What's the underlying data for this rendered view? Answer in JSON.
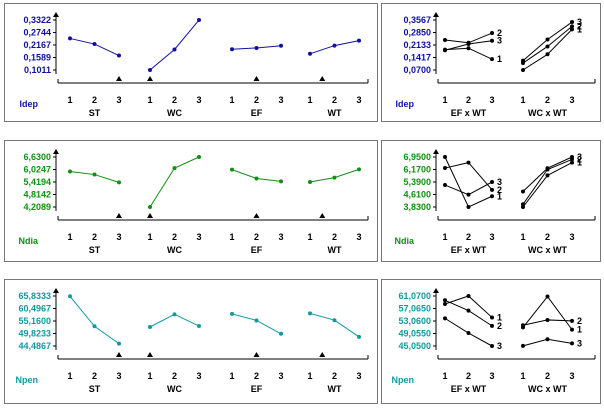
{
  "chart_data": [
    {
      "type": "line",
      "response": "Idep",
      "color": "#1010a0",
      "yticks": [
        "0,3322",
        "0,2744",
        "0,2167",
        "0,1589",
        "0,1011"
      ],
      "ylim": [
        0.1011,
        0.3322
      ],
      "main_effects": [
        {
          "factor": "ST",
          "x": [
            "1",
            "2",
            "3"
          ],
          "values": [
            0.247,
            0.221,
            0.168
          ],
          "marker_level": 3
        },
        {
          "factor": "WC",
          "x": [
            "1",
            "2",
            "3"
          ],
          "values": [
            0.101,
            0.196,
            0.332
          ],
          "marker_level": 1
        },
        {
          "factor": "EF",
          "x": [
            "1",
            "2",
            "3"
          ],
          "values": [
            0.197,
            0.203,
            0.213
          ],
          "marker_level": 2
        },
        {
          "factor": "WT",
          "x": [
            "1",
            "2",
            "3"
          ],
          "values": [
            0.176,
            0.214,
            0.237
          ],
          "marker_level": 1.5
        }
      ],
      "interactions_yticks": [
        "0,3567",
        "0,2850",
        "0,2133",
        "0,1417",
        "0,0700"
      ],
      "interactions_ylim": [
        0.07,
        0.3567
      ],
      "interactions": [
        {
          "name": "EF x WT",
          "x": [
            "1",
            "2",
            "3"
          ],
          "series": [
            {
              "name": "1",
              "values": [
                0.187,
                0.195,
                0.132
              ]
            },
            {
              "name": "2",
              "values": [
                0.242,
                0.226,
                0.282
              ]
            },
            {
              "name": "3",
              "values": [
                0.183,
                0.219,
                0.238
              ]
            }
          ]
        },
        {
          "name": "WC x WT",
          "x": [
            "1",
            "2",
            "3"
          ],
          "series": [
            {
              "name": "1",
              "values": [
                0.07,
                0.16,
                0.303
              ]
            },
            {
              "name": "2",
              "values": [
                0.11,
                0.205,
                0.32
              ]
            },
            {
              "name": "3",
              "values": [
                0.124,
                0.245,
                0.345
              ]
            }
          ]
        }
      ]
    },
    {
      "type": "line",
      "response": "Ndia",
      "color": "#109010",
      "yticks": [
        "6,6300",
        "6,0247",
        "5,4194",
        "4,8142",
        "4,2089"
      ],
      "ylim": [
        4.2089,
        6.63
      ],
      "main_effects": [
        {
          "factor": "ST",
          "x": [
            "1",
            "2",
            "3"
          ],
          "values": [
            5.93,
            5.78,
            5.4
          ],
          "marker_level": 3
        },
        {
          "factor": "WC",
          "x": [
            "1",
            "2",
            "3"
          ],
          "values": [
            4.21,
            6.09,
            6.63
          ],
          "marker_level": 1
        },
        {
          "factor": "EF",
          "x": [
            "1",
            "2",
            "3"
          ],
          "values": [
            6.02,
            5.59,
            5.45
          ],
          "marker_level": 2
        },
        {
          "factor": "WT",
          "x": [
            "1",
            "2",
            "3"
          ],
          "values": [
            5.42,
            5.63,
            6.03
          ],
          "marker_level": 1.5
        }
      ],
      "interactions_yticks": [
        "6,9500",
        "6,1700",
        "5,3900",
        "4,6100",
        "3,8300"
      ],
      "interactions_ylim": [
        3.83,
        6.95
      ],
      "interactions": [
        {
          "name": "EF x WT",
          "x": [
            "1",
            "2",
            "3"
          ],
          "series": [
            {
              "name": "1",
              "values": [
                6.95,
                3.83,
                4.5
              ]
            },
            {
              "name": "2",
              "values": [
                6.26,
                6.6,
                4.9
              ]
            },
            {
              "name": "3",
              "values": [
                5.2,
                4.6,
                5.39
              ]
            }
          ]
        },
        {
          "name": "WC x WT",
          "x": [
            "1",
            "2",
            "3"
          ],
          "series": [
            {
              "name": "1",
              "values": [
                3.83,
                5.8,
                6.6
              ]
            },
            {
              "name": "2",
              "values": [
                4.0,
                6.17,
                6.8
              ]
            },
            {
              "name": "3",
              "values": [
                4.8,
                6.25,
                6.95
              ]
            }
          ]
        }
      ]
    },
    {
      "type": "line",
      "response": "Npen",
      "color": "#109aa0",
      "yticks": [
        "65,8333",
        "60,4967",
        "55,1600",
        "49,8233",
        "44,4867"
      ],
      "ylim": [
        44.4867,
        65.8333
      ],
      "main_effects": [
        {
          "factor": "ST",
          "x": [
            "1",
            "2",
            "3"
          ],
          "values": [
            65.7,
            52.9,
            45.5
          ],
          "marker_level": 3
        },
        {
          "factor": "WC",
          "x": [
            "1",
            "2",
            "3"
          ],
          "values": [
            52.6,
            58.0,
            53.0
          ],
          "marker_level": 1
        },
        {
          "factor": "EF",
          "x": [
            "1",
            "2",
            "3"
          ],
          "values": [
            58.2,
            55.4,
            49.7
          ],
          "marker_level": 2
        },
        {
          "factor": "WT",
          "x": [
            "1",
            "2",
            "3"
          ],
          "values": [
            58.4,
            55.5,
            48.4
          ],
          "marker_level": 1.5
        }
      ],
      "interactions_yticks": [
        "61,0700",
        "57,0650",
        "53,0600",
        "49,0550",
        "45,0500"
      ],
      "interactions_ylim": [
        45.05,
        61.07
      ],
      "interactions": [
        {
          "name": "EF x WT",
          "x": [
            "1",
            "2",
            "3"
          ],
          "series": [
            {
              "name": "1",
              "values": [
                58.5,
                61.07,
                54.2
              ]
            },
            {
              "name": "2",
              "values": [
                59.7,
                56.4,
                51.5
              ]
            },
            {
              "name": "3",
              "values": [
                53.9,
                49.2,
                45.05
              ]
            }
          ]
        },
        {
          "name": "WC x WT",
          "x": [
            "1",
            "2",
            "3"
          ],
          "series": [
            {
              "name": "1",
              "values": [
                51.0,
                60.9,
                50.3
              ]
            },
            {
              "name": "2",
              "values": [
                51.7,
                53.4,
                53.1
              ]
            },
            {
              "name": "3",
              "values": [
                45.1,
                47.2,
                45.9
              ]
            }
          ]
        }
      ]
    }
  ]
}
